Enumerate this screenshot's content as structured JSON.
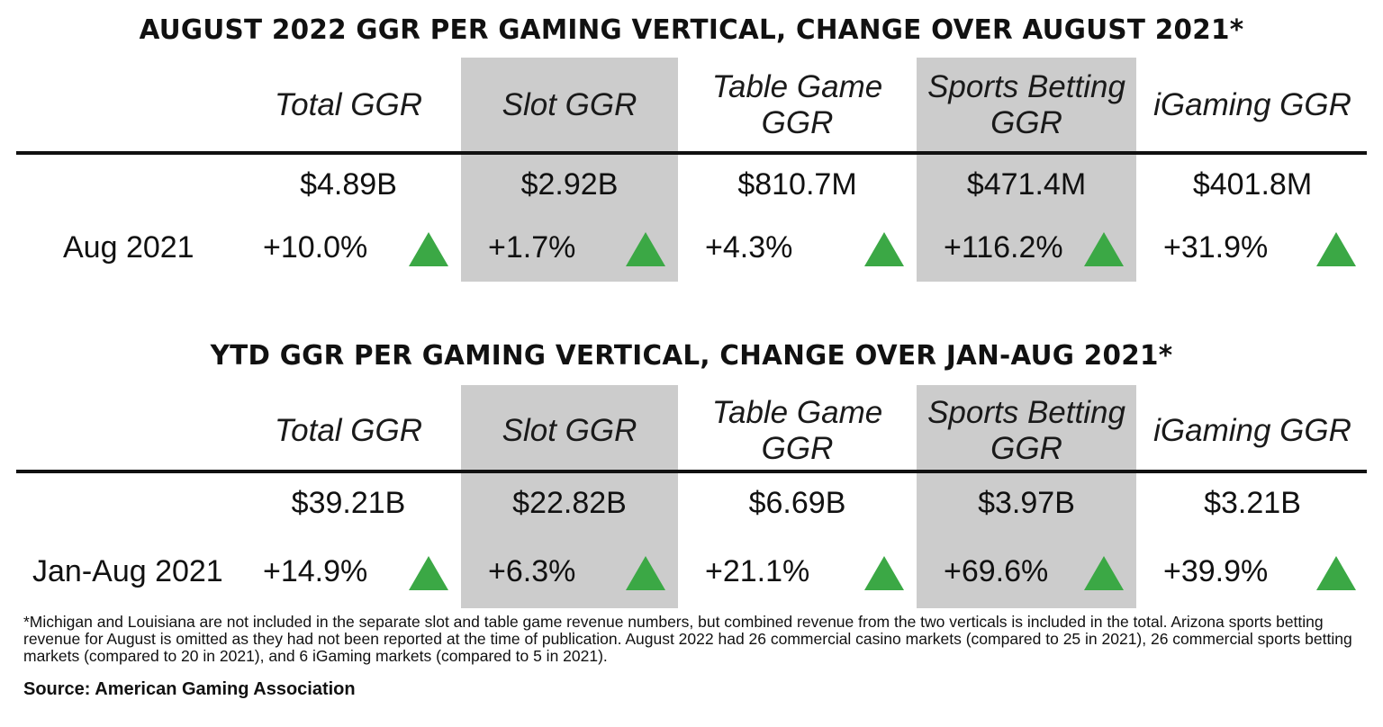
{
  "colors": {
    "shade": "#cccccc",
    "up_arrow": "#3ba845",
    "text": "#111111"
  },
  "tables": [
    {
      "title": "AUGUST 2022 GGR PER GAMING VERTICAL, CHANGE OVER AUGUST 2021*",
      "row_label": "Aug 2021",
      "columns": [
        {
          "header": "Total GGR",
          "value": "$4.89B",
          "change": "+10.0%",
          "direction": "up",
          "shaded": false
        },
        {
          "header": "Slot GGR",
          "value": "$2.92B",
          "change": "+1.7%",
          "direction": "up",
          "shaded": true
        },
        {
          "header": "Table Game GGR",
          "value": "$810.7M",
          "change": "+4.3%",
          "direction": "up",
          "shaded": false
        },
        {
          "header": "Sports Betting GGR",
          "value": "$471.4M",
          "change": "+116.2%",
          "direction": "up",
          "shaded": true
        },
        {
          "header": "iGaming GGR",
          "value": "$401.8M",
          "change": "+31.9%",
          "direction": "up",
          "shaded": false
        }
      ]
    },
    {
      "title": "YTD GGR PER GAMING VERTICAL, CHANGE OVER JAN-AUG 2021*",
      "row_label": "Jan-Aug 2021",
      "columns": [
        {
          "header": "Total GGR",
          "value": "$39.21B",
          "change": "+14.9%",
          "direction": "up",
          "shaded": false
        },
        {
          "header": "Slot GGR",
          "value": "$22.82B",
          "change": "+6.3%",
          "direction": "up",
          "shaded": true
        },
        {
          "header": "Table Game GGR",
          "value": "$6.69B",
          "change": "+21.1%",
          "direction": "up",
          "shaded": false
        },
        {
          "header": "Sports Betting GGR",
          "value": "$3.97B",
          "change": "+69.6%",
          "direction": "up",
          "shaded": true
        },
        {
          "header": "iGaming GGR",
          "value": "$3.21B",
          "change": "+39.9%",
          "direction": "up",
          "shaded": false
        }
      ]
    }
  ],
  "chart_data": [
    {
      "type": "table",
      "title": "AUGUST 2022 GGR PER GAMING VERTICAL, CHANGE OVER AUGUST 2021*",
      "categories": [
        "Total GGR",
        "Slot GGR",
        "Table Game GGR",
        "Sports Betting GGR",
        "iGaming GGR"
      ],
      "series": [
        {
          "name": "",
          "values": [
            "$4.89B",
            "$2.92B",
            "$810.7M",
            "$471.4M",
            "$401.8M"
          ]
        },
        {
          "name": "Aug 2021",
          "values": [
            "+10.0%",
            "+1.7%",
            "+4.3%",
            "+116.2%",
            "+31.9%"
          ]
        }
      ]
    },
    {
      "type": "table",
      "title": "YTD GGR PER GAMING VERTICAL, CHANGE OVER JAN-AUG 2021*",
      "categories": [
        "Total GGR",
        "Slot GGR",
        "Table Game GGR",
        "Sports Betting GGR",
        "iGaming GGR"
      ],
      "series": [
        {
          "name": "",
          "values": [
            "$39.21B",
            "$22.82B",
            "$6.69B",
            "$3.97B",
            "$3.21B"
          ]
        },
        {
          "name": "Jan-Aug 2021",
          "values": [
            "+14.9%",
            "+6.3%",
            "+21.1%",
            "+69.6%",
            "+39.9%"
          ]
        }
      ]
    }
  ],
  "footnote": "*Michigan and Louisiana are not included in the separate slot and table game revenue numbers, but combined revenue from the two verticals is included in the total. Arizona sports betting revenue for August is omitted as they had not been reported at the time of publication. August 2022 had 26 commercial casino markets (compared to 25 in 2021), 26 commercial sports betting markets (compared to 20 in 2021), and 6 iGaming markets (compared to 5 in 2021).",
  "source": "Source: American Gaming Association"
}
